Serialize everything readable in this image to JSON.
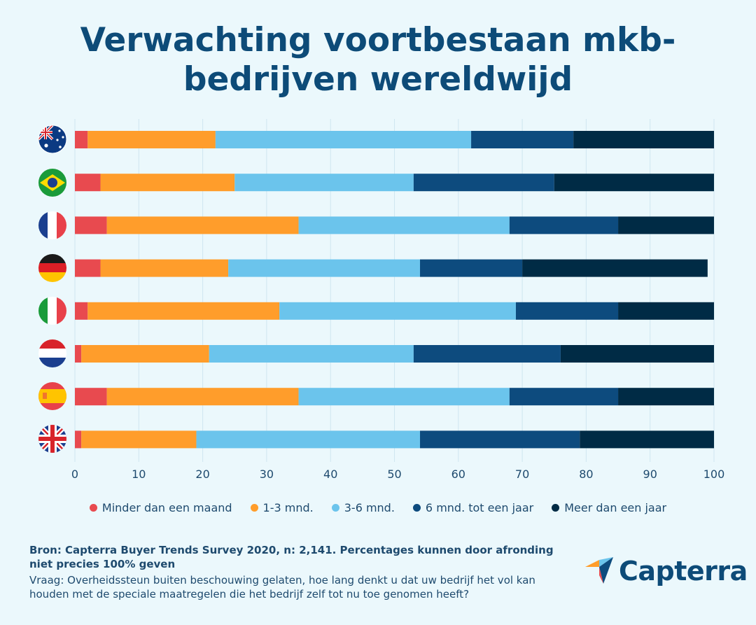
{
  "title_line1": "Verwachting voortbestaan mkb-",
  "title_line2": "bedrijven wereldwijd",
  "chart_data": {
    "type": "bar",
    "orientation": "horizontal",
    "stacked": true,
    "categories": [
      "Australië",
      "Brazilië",
      "Frankrijk",
      "Duitsland",
      "Italië",
      "Nederland",
      "Spanje",
      "Verenigd Koninkrijk"
    ],
    "category_icons": [
      "australia-flag-icon",
      "brazil-flag-icon",
      "france-flag-icon",
      "germany-flag-icon",
      "italy-flag-icon",
      "netherlands-flag-icon",
      "spain-flag-icon",
      "uk-flag-icon"
    ],
    "series": [
      {
        "name": "Minder dan een maand",
        "color": "#e84a4f",
        "values": [
          2,
          4,
          5,
          4,
          2,
          1,
          5,
          1
        ]
      },
      {
        "name": "1-3 mnd.",
        "color": "#ff9d2b",
        "values": [
          20,
          21,
          30,
          20,
          30,
          20,
          30,
          18
        ]
      },
      {
        "name": "3-6 mnd.",
        "color": "#6bc4ec",
        "values": [
          40,
          28,
          33,
          30,
          37,
          32,
          33,
          35
        ]
      },
      {
        "name": "6 mnd. tot een jaar",
        "color": "#0d4b7e",
        "values": [
          16,
          22,
          17,
          16,
          16,
          23,
          17,
          25
        ]
      },
      {
        "name": "Meer dan een jaar",
        "color": "#002b45",
        "values": [
          22,
          25,
          15,
          29,
          15,
          24,
          15,
          21
        ]
      }
    ],
    "xlim": [
      0,
      100
    ],
    "xticks": [
      0,
      10,
      20,
      30,
      40,
      50,
      60,
      70,
      80,
      90,
      100
    ],
    "grid": true,
    "legend_position": "bottom"
  },
  "footer": {
    "source": "Bron: Capterra Buyer Trends Survey 2020, n: 2,141. Percentages kunnen door afronding niet precies 100% geven",
    "question": "Vraag: Overheidssteun buiten beschouwing gelaten, hoe lang denkt u dat uw bedrijf het vol kan houden met de speciale maatregelen die het bedrijf zelf tot nu toe genomen heeft?"
  },
  "logo": {
    "text": "Capterra",
    "icon": "capterra-logo-icon"
  }
}
